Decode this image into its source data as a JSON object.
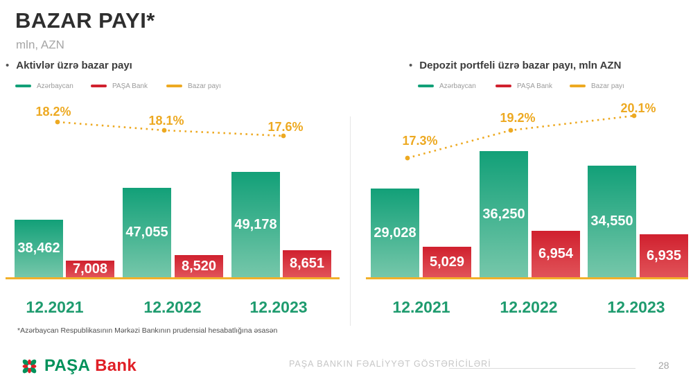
{
  "title": "BAZAR PAYI*",
  "subtitle": "mln, AZN",
  "footnote": "*Azərbaycan Respublikasının Mərkəzi Bankının prudensial hesabatlığına əsasən",
  "footer": {
    "logo_word_1": "PAŞA",
    "logo_word_2": "Bank",
    "caption": "PAŞA BANKIN FƏALİYYƏT GÖSTƏRİCİLƏRİ",
    "page_number": "28"
  },
  "colors": {
    "green_top": "#12a078",
    "green_bottom": "#76c7aa",
    "red_top": "#d0202e",
    "red_bottom": "#e15359",
    "amber": "#eda921",
    "baseline_amber": "#f2b02a",
    "category_green": "#1e9b6e",
    "logo_green": "#00915a",
    "logo_red": "#e01f26"
  },
  "chart_data": [
    {
      "type": "bar",
      "title": "Aktivlər üzrə bazar payı",
      "bullet": "•",
      "legend_position": "top",
      "categories": [
        "12.2021",
        "12.2022",
        "12.2023"
      ],
      "series": [
        {
          "name": "Azərbaycan",
          "color": "green",
          "values": [
            38462,
            47055,
            49178
          ],
          "labels": [
            "38,462",
            "47,055",
            "49,178"
          ]
        },
        {
          "name": "PAŞA Bank",
          "color": "red",
          "values": [
            7008,
            8520,
            8651
          ],
          "labels": [
            "7,008",
            "8,520",
            "8,651"
          ]
        },
        {
          "name": "Bazar payı",
          "color": "amber",
          "type": "dotted-line",
          "values": [
            18.2,
            18.1,
            17.6
          ],
          "labels": [
            "18.2%",
            "18.1%",
            "17.6%"
          ]
        }
      ]
    },
    {
      "type": "bar",
      "title": "Depozit portfeli üzrə bazar payı, mln AZN",
      "bullet": "•",
      "legend_position": "top",
      "categories": [
        "12.2021",
        "12.2022",
        "12.2023"
      ],
      "series": [
        {
          "name": "Azərbaycan",
          "color": "green",
          "values": [
            29028,
            36250,
            34550
          ],
          "labels": [
            "29,028",
            "36,250",
            "34,550"
          ]
        },
        {
          "name": "PAŞA Bank",
          "color": "red",
          "values": [
            5029,
            6954,
            6935
          ],
          "labels": [
            "5,029",
            "6,954",
            "6,935"
          ]
        },
        {
          "name": "Bazar payı",
          "color": "amber",
          "type": "dotted-line",
          "values": [
            17.3,
            19.2,
            20.1
          ],
          "labels": [
            "17.3%",
            "19.2%",
            "20.1%"
          ]
        }
      ]
    }
  ]
}
